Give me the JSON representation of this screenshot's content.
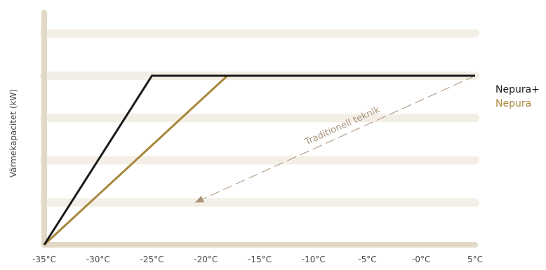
{
  "chart_data": {
    "type": "line",
    "title": "",
    "xlabel": "",
    "ylabel": "Värmekapacitet (kW)",
    "x_tick_labels": [
      "-35°C",
      "-30°C",
      "-25°C",
      "-20°C",
      "-15°C",
      "-10°C",
      "-5°C",
      "-0°C",
      "5°C"
    ],
    "x_tick_values": [
      -35,
      -30,
      -25,
      -20,
      -15,
      -10,
      -5,
      0,
      5
    ],
    "xlim": [
      -35,
      5
    ],
    "ylim": [
      0,
      5
    ],
    "grid": {
      "horizontal": true,
      "values": [
        1,
        2,
        3,
        4,
        5
      ]
    },
    "legend_position": "right",
    "series": [
      {
        "name": "Nepura+",
        "color": "#1a1a1a",
        "points": [
          [
            -35,
            0
          ],
          [
            -25,
            4
          ],
          [
            5,
            4
          ]
        ]
      },
      {
        "name": "Nepura",
        "color": "#a8873c",
        "points": [
          [
            -35,
            0
          ],
          [
            -18,
            4
          ],
          [
            5,
            4
          ]
        ]
      }
    ],
    "annotations": [
      {
        "text": "Traditionell teknik",
        "color": "#a8937a",
        "arrow_from": [
          5,
          4
        ],
        "arrow_to": [
          -21,
          1
        ]
      }
    ],
    "colors": {
      "axis": "#e2d8c6",
      "grid": "#f4efe6"
    }
  }
}
